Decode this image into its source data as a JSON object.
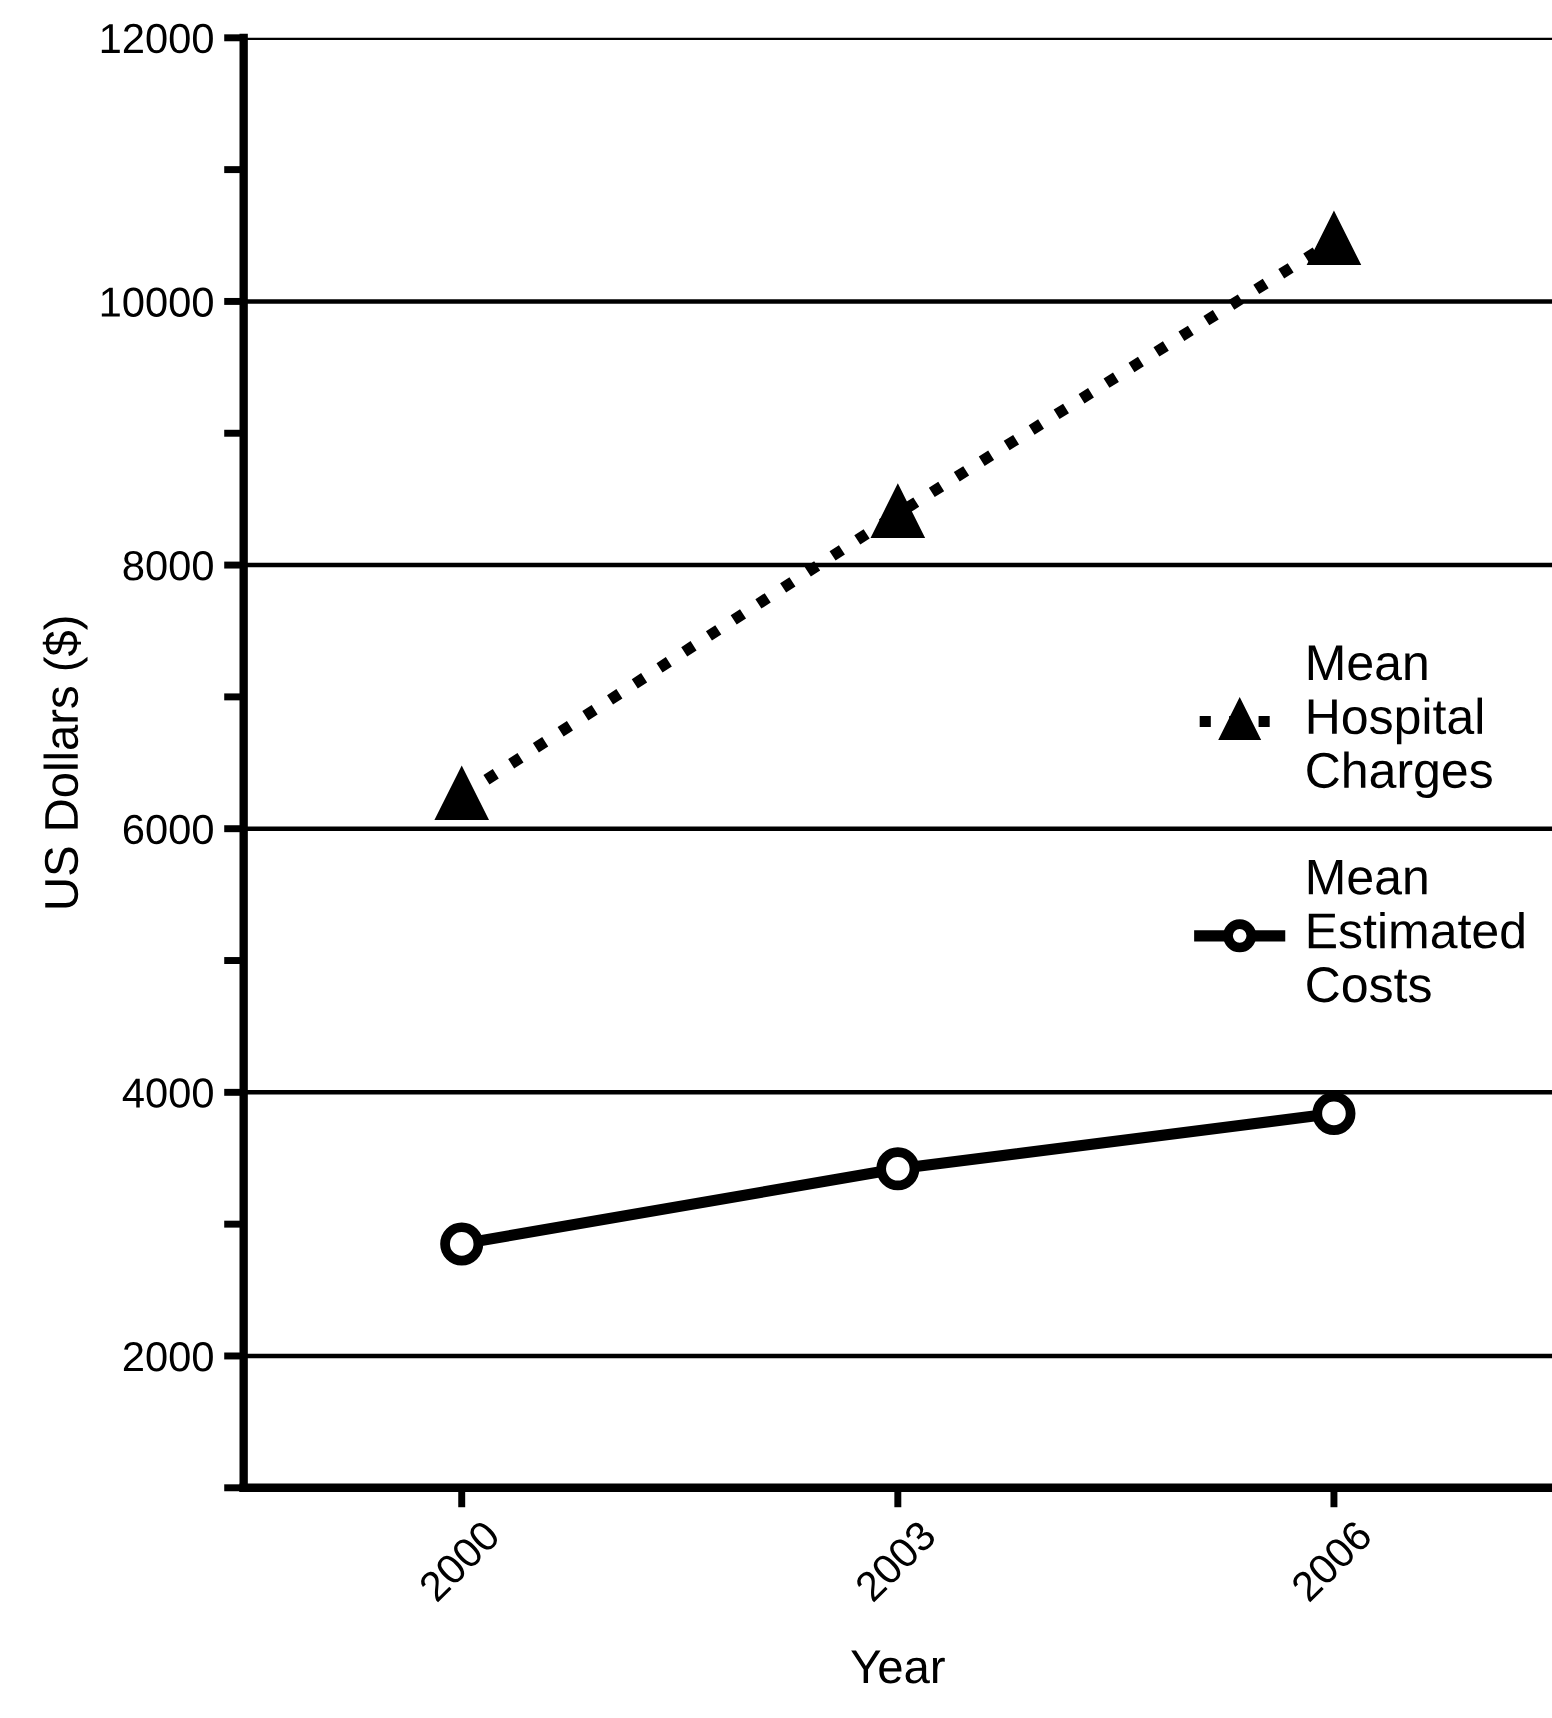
{
  "chart_data": {
    "type": "line",
    "xlabel": "Year",
    "ylabel": "US Dollars ($)",
    "x": [
      2000,
      2003,
      2006
    ],
    "series": [
      {
        "name": "Mean Hospital Charges",
        "color": "#000000",
        "values": [
          6250,
          8390,
          10460
        ],
        "marker": "triangle",
        "line_style": "dotted"
      },
      {
        "name": "Mean Estimated Costs",
        "color": "#000000",
        "values": [
          2850,
          3420,
          3840
        ],
        "marker": "circle",
        "line_style": "solid"
      }
    ],
    "xlim": [
      1998.5,
      2007.5
    ],
    "xticks": [
      2000,
      2003,
      2006
    ],
    "ylim": [
      1000,
      12000
    ],
    "yticks": [
      {
        "value": 1000,
        "label": null
      },
      2000,
      {
        "value": 3000,
        "label": null
      },
      4000,
      {
        "value": 5000,
        "label": null
      },
      6000,
      {
        "value": 7000,
        "label": null
      },
      8000,
      {
        "value": 9000,
        "label": null
      },
      10000,
      {
        "value": 11000,
        "label": null
      },
      12000
    ],
    "grid": "y",
    "legend": "right"
  }
}
